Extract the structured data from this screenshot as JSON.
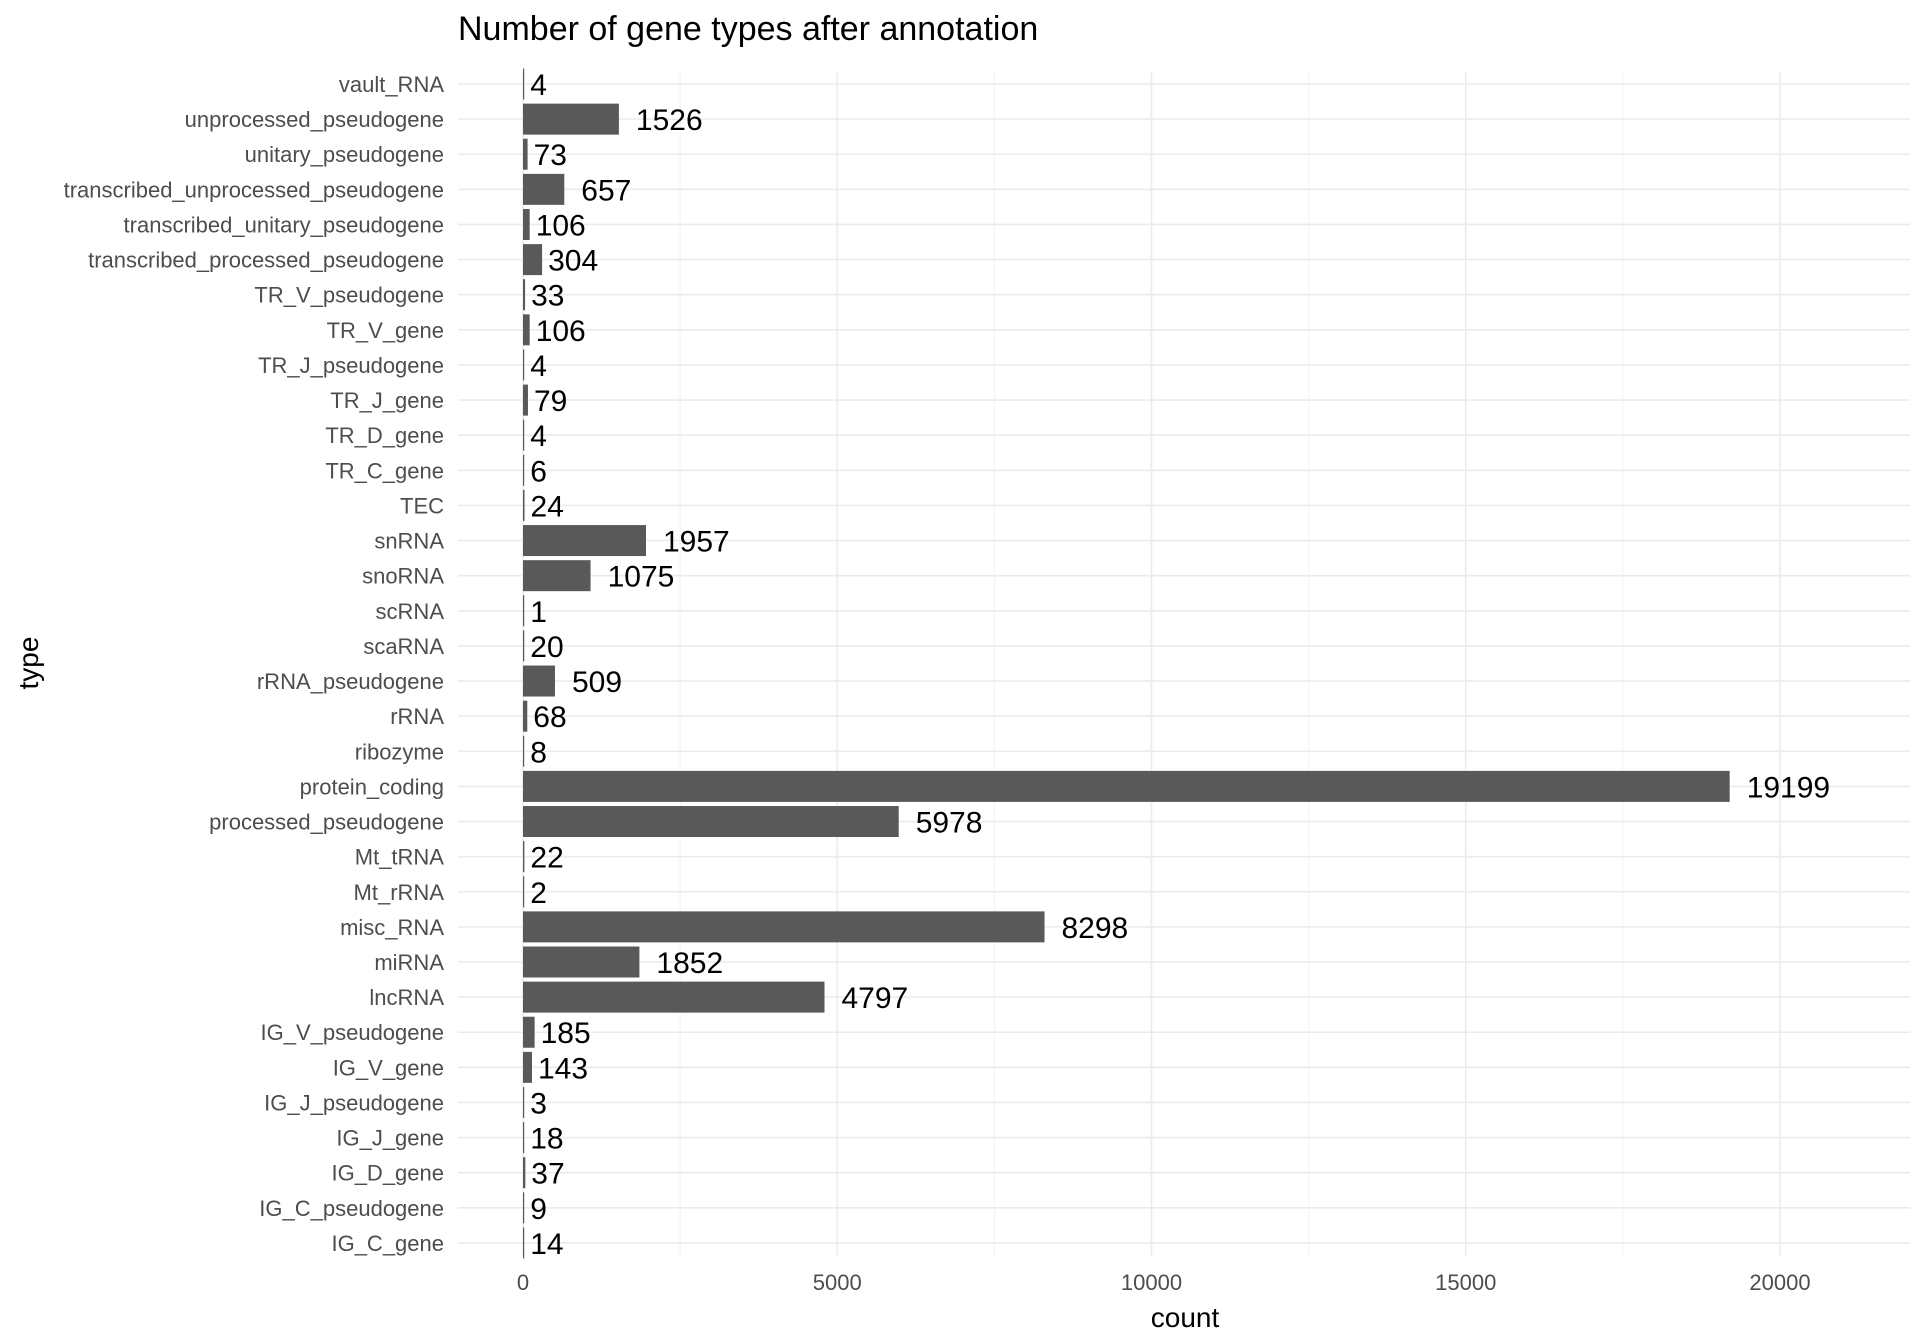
{
  "chart_data": {
    "type": "bar",
    "orientation": "horizontal",
    "title": "Number of gene types after annotation",
    "xlabel": "count",
    "ylabel": "type",
    "xlim": [
      0,
      22000
    ],
    "x_ticks": [
      0,
      5000,
      10000,
      15000,
      20000
    ],
    "grid": true,
    "bar_color": "#595959",
    "categories": [
      "vault_RNA",
      "unprocessed_pseudogene",
      "unitary_pseudogene",
      "transcribed_unprocessed_pseudogene",
      "transcribed_unitary_pseudogene",
      "transcribed_processed_pseudogene",
      "TR_V_pseudogene",
      "TR_V_gene",
      "TR_J_pseudogene",
      "TR_J_gene",
      "TR_D_gene",
      "TR_C_gene",
      "TEC",
      "snRNA",
      "snoRNA",
      "scRNA",
      "scaRNA",
      "rRNA_pseudogene",
      "rRNA",
      "ribozyme",
      "protein_coding",
      "processed_pseudogene",
      "Mt_tRNA",
      "Mt_rRNA",
      "misc_RNA",
      "miRNA",
      "lncRNA",
      "IG_V_pseudogene",
      "IG_V_gene",
      "IG_J_pseudogene",
      "IG_J_gene",
      "IG_D_gene",
      "IG_C_pseudogene",
      "IG_C_gene"
    ],
    "values": [
      4,
      1526,
      73,
      657,
      106,
      304,
      33,
      106,
      4,
      79,
      4,
      6,
      24,
      1957,
      1075,
      1,
      20,
      509,
      68,
      8,
      19199,
      5978,
      22,
      2,
      8298,
      1852,
      4797,
      185,
      143,
      3,
      18,
      37,
      9,
      14
    ]
  }
}
